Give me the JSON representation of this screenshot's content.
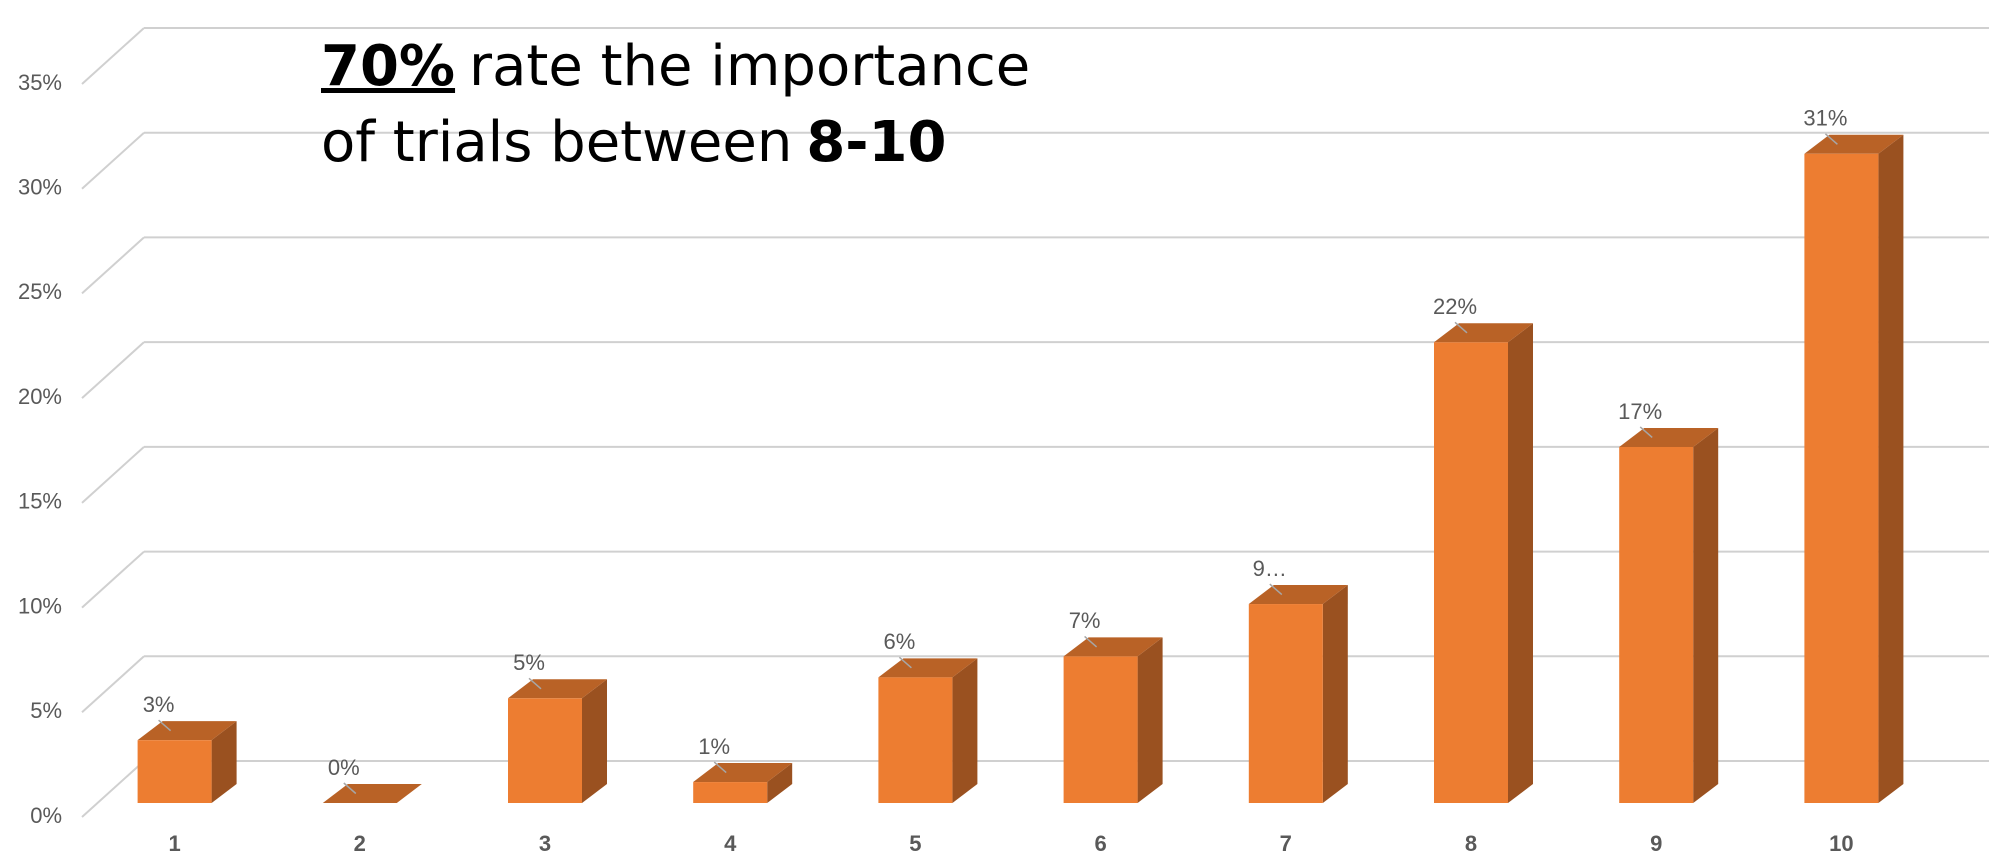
{
  "chart_data": {
    "type": "bar3d",
    "annotation": {
      "line1_bold": "70%",
      "line1_rest": "rate the importance",
      "line2_rest": "of trials between",
      "line2_bold": "8-10"
    },
    "categories": [
      "1",
      "2",
      "3",
      "4",
      "5",
      "6",
      "7",
      "8",
      "9",
      "10"
    ],
    "values": [
      3,
      0,
      5,
      1,
      6,
      7,
      9.5,
      22,
      17,
      31
    ],
    "value_labels": [
      "3%",
      "0%",
      "5%",
      "1%",
      "6%",
      "7%",
      "9…",
      "22%",
      "17%",
      "31%"
    ],
    "color": "#ed7d31",
    "ylim": [
      0,
      35
    ],
    "yticks": [
      {
        "value": 0,
        "label": "0%"
      },
      {
        "value": 5,
        "label": "5%"
      },
      {
        "value": 10,
        "label": "10%"
      },
      {
        "value": 15,
        "label": "15%"
      },
      {
        "value": 20,
        "label": "20%"
      },
      {
        "value": 25,
        "label": "25%"
      },
      {
        "value": 30,
        "label": "30%"
      },
      {
        "value": 35,
        "label": "35%"
      }
    ],
    "grid": true
  }
}
